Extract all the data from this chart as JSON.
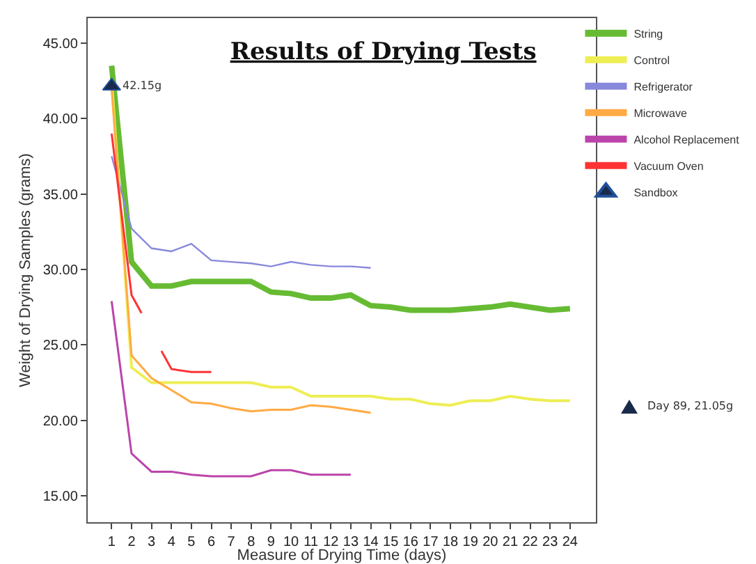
{
  "chart_data": {
    "type": "line",
    "title": "Results of Drying Tests",
    "xlabel": "Measure of Drying Time (days)",
    "ylabel": "Weight of Drying Samples (grams)",
    "x": [
      1,
      2,
      3,
      4,
      5,
      6,
      7,
      8,
      9,
      10,
      11,
      12,
      13,
      14,
      15,
      16,
      17,
      18,
      19,
      20,
      21,
      22,
      23,
      24
    ],
    "series": [
      {
        "name": "String",
        "color": "#66bb33",
        "values": [
          43.5,
          30.5,
          28.9,
          28.9,
          29.2,
          29.2,
          29.2,
          29.2,
          28.5,
          28.4,
          28.1,
          28.1,
          28.3,
          27.6,
          27.5,
          27.3,
          27.3,
          27.3,
          27.4,
          27.5,
          27.7,
          27.5,
          27.3,
          27.4
        ]
      },
      {
        "name": "Control",
        "color": "#eeee55",
        "values": [
          42.5,
          23.5,
          22.5,
          22.5,
          22.5,
          22.5,
          22.5,
          22.5,
          22.2,
          22.2,
          21.6,
          21.6,
          21.6,
          21.6,
          21.4,
          21.4,
          21.1,
          21.0,
          21.3,
          21.3,
          21.6,
          21.4,
          21.3,
          21.3
        ]
      },
      {
        "name": "Refrigerator",
        "color": "#8888dd",
        "values": [
          37.5,
          32.7,
          31.4,
          31.2,
          31.7,
          30.6,
          30.5,
          30.4,
          30.2,
          30.5,
          30.3,
          30.2,
          30.2,
          30.1,
          null,
          null,
          null,
          null,
          null,
          null,
          null,
          null,
          null,
          null
        ]
      },
      {
        "name": "Microwave",
        "color": "#ffaa44",
        "values": [
          42.0,
          24.3,
          22.8,
          22.0,
          21.2,
          21.1,
          20.8,
          20.6,
          20.7,
          20.7,
          21.0,
          20.9,
          20.7,
          20.5,
          null,
          null,
          null,
          null,
          null,
          null,
          null,
          null,
          null,
          null
        ]
      },
      {
        "name": "Alcohol Replacement",
        "color": "#bb44aa",
        "values": [
          27.9,
          17.8,
          16.6,
          16.6,
          16.4,
          16.3,
          16.3,
          16.3,
          16.7,
          16.7,
          16.4,
          16.4,
          16.4,
          null,
          null,
          null,
          null,
          null,
          null,
          null,
          null,
          null,
          null,
          null
        ]
      },
      {
        "name": "Vacuum Oven",
        "color": "#ff3333",
        "x": [
          1,
          2,
          2.5,
          3,
          3.5,
          4,
          5,
          6
        ],
        "values": [
          39.0,
          28.3,
          27.1,
          null,
          24.6,
          23.4,
          23.2,
          23.2
        ]
      },
      {
        "name": "Sandbox",
        "type": "scatter",
        "marker": "triangle",
        "color": "#1a2a4a",
        "x": [
          1
        ],
        "values": [
          42.15
        ],
        "value_labels": [
          "42.15g"
        ]
      }
    ],
    "annotations": [
      "Day 89, 21.05g"
    ],
    "xlim": [
      -0.2,
      25.3
    ],
    "xticks": [
      1,
      2,
      3,
      4,
      5,
      6,
      7,
      8,
      9,
      10,
      11,
      12,
      13,
      14,
      15,
      16,
      17,
      18,
      19,
      20,
      21,
      22,
      23,
      24
    ],
    "ylim": [
      13.25,
      46.65
    ],
    "yticks": [
      {
        "value": 15,
        "label": "15.00"
      },
      {
        "value": 20,
        "label": "20.00"
      },
      {
        "value": 25,
        "label": "25.00"
      },
      {
        "value": 30,
        "label": "30.00"
      },
      {
        "value": 35,
        "label": "35.00"
      },
      {
        "value": 40,
        "label": "40.00"
      },
      {
        "value": 45,
        "label": "45.00"
      }
    ],
    "grid": false,
    "legend": "top right",
    "marker": "none",
    "line_style": "solid"
  }
}
